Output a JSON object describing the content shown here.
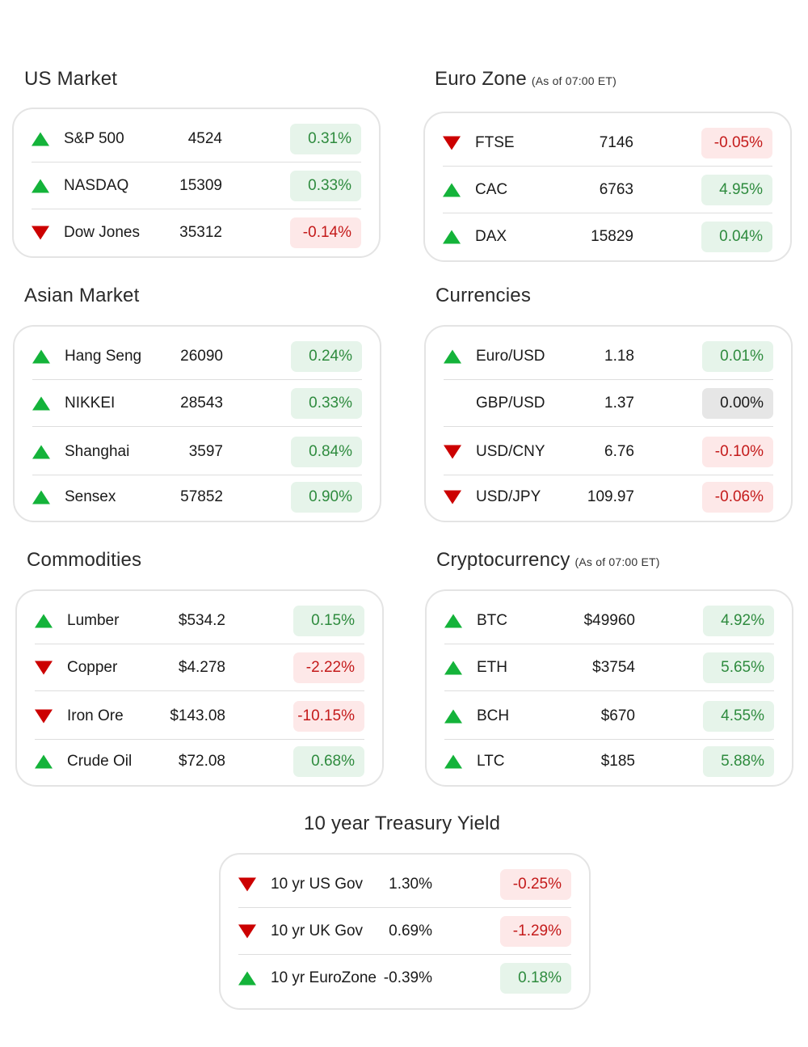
{
  "sections": {
    "us": {
      "title": "US Market",
      "rows": [
        {
          "name": "S&P 500",
          "value": "4524",
          "change": "0.31%",
          "dir": "up"
        },
        {
          "name": "NASDAQ",
          "value": "15309",
          "change": "0.33%",
          "dir": "up"
        },
        {
          "name": "Dow Jones",
          "value": "35312",
          "change": "-0.14%",
          "dir": "down"
        }
      ]
    },
    "euro": {
      "title": "Euro Zone",
      "subtitle": "(As of 07:00 ET)",
      "rows": [
        {
          "name": "FTSE",
          "value": "7146",
          "change": "-0.05%",
          "dir": "down"
        },
        {
          "name": "CAC",
          "value": "6763",
          "change": "4.95%",
          "dir": "up"
        },
        {
          "name": "DAX",
          "value": "15829",
          "change": "0.04%",
          "dir": "up"
        }
      ]
    },
    "asia": {
      "title": "Asian Market",
      "rows": [
        {
          "name": "Hang Seng",
          "value": "26090",
          "change": "0.24%",
          "dir": "up"
        },
        {
          "name": "NIKKEI",
          "value": "28543",
          "change": "0.33%",
          "dir": "up"
        },
        {
          "name": "Shanghai",
          "value": "3597",
          "change": "0.84%",
          "dir": "up"
        },
        {
          "name": "Sensex",
          "value": "57852",
          "change": "0.90%",
          "dir": "up"
        }
      ]
    },
    "currencies": {
      "title": "Currencies",
      "rows": [
        {
          "name": "Euro/USD",
          "value": "1.18",
          "change": "0.01%",
          "dir": "up"
        },
        {
          "name": "GBP/USD",
          "value": "1.37",
          "change": "0.00%",
          "dir": "flat"
        },
        {
          "name": "USD/CNY",
          "value": "6.76",
          "change": "-0.10%",
          "dir": "down"
        },
        {
          "name": "USD/JPY",
          "value": "109.97",
          "change": "-0.06%",
          "dir": "down"
        }
      ]
    },
    "commodities": {
      "title": "Commodities",
      "rows": [
        {
          "name": "Lumber",
          "value": "$534.2",
          "change": "0.15%",
          "dir": "up"
        },
        {
          "name": "Copper",
          "value": "$4.278",
          "change": "-2.22%",
          "dir": "down"
        },
        {
          "name": "Iron Ore",
          "value": "$143.08",
          "change": "-10.15%",
          "dir": "down"
        },
        {
          "name": "Crude Oil",
          "value": "$72.08",
          "change": "0.68%",
          "dir": "up"
        }
      ]
    },
    "crypto": {
      "title": "Cryptocurrency",
      "subtitle": "(As of 07:00 ET)",
      "rows": [
        {
          "name": "BTC",
          "value": "$49960",
          "change": "4.92%",
          "dir": "up"
        },
        {
          "name": "ETH",
          "value": "$3754",
          "change": "5.65%",
          "dir": "up"
        },
        {
          "name": "BCH",
          "value": "$670",
          "change": "4.55%",
          "dir": "up"
        },
        {
          "name": "LTC",
          "value": "$185",
          "change": "5.88%",
          "dir": "up"
        }
      ]
    },
    "treasury": {
      "title": "10 year Treasury Yield",
      "rows": [
        {
          "name": "10 yr US Gov",
          "value": "1.30%",
          "change": "-0.25%",
          "dir": "down"
        },
        {
          "name": "10 yr UK Gov",
          "value": "0.69%",
          "change": "-1.29%",
          "dir": "down"
        },
        {
          "name": "10 yr EuroZone",
          "value": "-0.39%",
          "change": "0.18%",
          "dir": "up"
        }
      ]
    }
  },
  "colors": {
    "up_arrow": "#14b33a",
    "down_arrow": "#cc0000",
    "positive_badge_bg": "#e6f4ea",
    "positive_text": "#2e8b3e",
    "negative_badge_bg": "#fde8e8",
    "negative_text": "#c41a1a",
    "neutral_badge_bg": "#e6e6e6"
  }
}
